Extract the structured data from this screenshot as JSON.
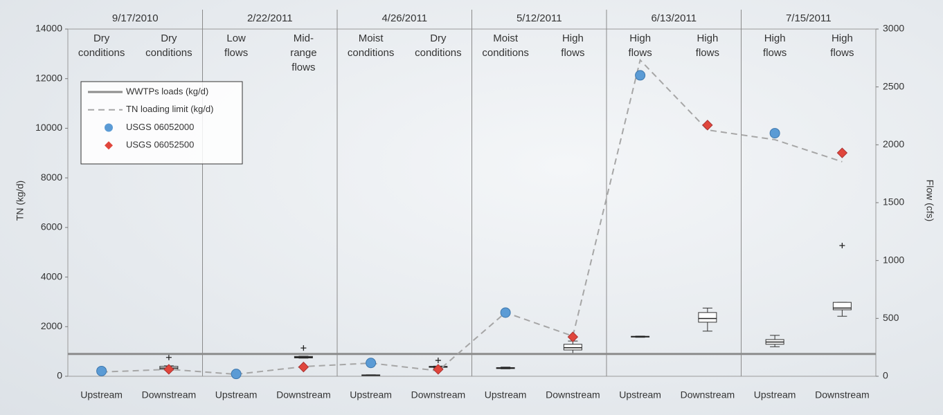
{
  "chart_data": {
    "type": "box",
    "ylabel": "TN (kg/d)",
    "y2label": "Flow (cfs)",
    "ylim": [
      0,
      14000
    ],
    "yticks": [
      0,
      2000,
      4000,
      6000,
      8000,
      10000,
      12000,
      14000
    ],
    "y2lim": [
      0,
      3000
    ],
    "y2ticks": [
      0,
      500,
      1000,
      1500,
      2000,
      2500,
      3000
    ],
    "groups": [
      "9/17/2010",
      "2/22/2011",
      "4/26/2011",
      "5/12/2011",
      "6/13/2011",
      "7/15/2011"
    ],
    "categories": [
      "Upstream",
      "Downstream",
      "Upstream",
      "Downstream",
      "Upstream",
      "Downstream",
      "Upstream",
      "Downstream",
      "Upstream",
      "Downstream",
      "Upstream",
      "Downstream"
    ],
    "conditions": [
      "Dry conditions",
      "Dry conditions",
      "Low flows",
      "Mid-range flows",
      "Moist conditions",
      "Dry conditions",
      "Moist conditions",
      "High flows",
      "High flows",
      "High flows",
      "High flows",
      "High flows"
    ],
    "box_color": "#ffffff",
    "boxes": [
      null,
      {
        "min": 250,
        "q1": 280,
        "median": 330,
        "q3": 400,
        "max": 420,
        "outliers": [
          760
        ]
      },
      null,
      {
        "min": 730,
        "q1": 740,
        "median": 770,
        "q3": 800,
        "max": 810,
        "outliers": [
          1140
        ]
      },
      {
        "min": 40,
        "q1": 45,
        "median": 50,
        "q3": 55,
        "max": 60
      },
      {
        "min": 340,
        "q1": 360,
        "median": 380,
        "q3": 400,
        "max": 410,
        "outliers": [
          640
        ]
      },
      {
        "min": 300,
        "q1": 310,
        "median": 330,
        "q3": 350,
        "max": 370
      },
      {
        "min": 880,
        "q1": 1060,
        "median": 1150,
        "q3": 1290,
        "max": 1420
      },
      {
        "min": 1570,
        "q1": 1580,
        "median": 1600,
        "q3": 1610,
        "max": 1620
      },
      {
        "min": 1820,
        "q1": 2180,
        "median": 2330,
        "q3": 2570,
        "max": 2750
      },
      {
        "min": 1190,
        "q1": 1290,
        "median": 1380,
        "q3": 1480,
        "max": 1650
      },
      {
        "min": 2420,
        "q1": 2680,
        "median": 2750,
        "q3": 2980,
        "max": 2980,
        "outliers": [
          5270
        ]
      }
    ],
    "series": [
      {
        "name": "WWTPs loads (kg/d)",
        "type": "hline",
        "color": "#8c8c8c",
        "value": 900
      },
      {
        "name": "TN loading limit (kg/d)",
        "type": "line",
        "dashed": true,
        "color": "#a6a6a6",
        "values": [
          170,
          280,
          80,
          390,
          530,
          220,
          2570,
          1620,
          12750,
          9930,
          9540,
          8650
        ]
      },
      {
        "name": "USGS 06052000",
        "type": "scatter",
        "marker": "circle",
        "color": "#5b9bd5",
        "axis": "y2",
        "values": [
          45,
          null,
          20,
          null,
          115,
          null,
          550,
          null,
          2600,
          null,
          2100,
          null
        ]
      },
      {
        "name": "USGS 06052500",
        "type": "scatter",
        "marker": "diamond",
        "color": "#e0463c",
        "axis": "y2",
        "values": [
          null,
          60,
          null,
          80,
          null,
          60,
          null,
          340,
          null,
          2170,
          null,
          1930
        ]
      }
    ],
    "legend": "upper-left"
  }
}
